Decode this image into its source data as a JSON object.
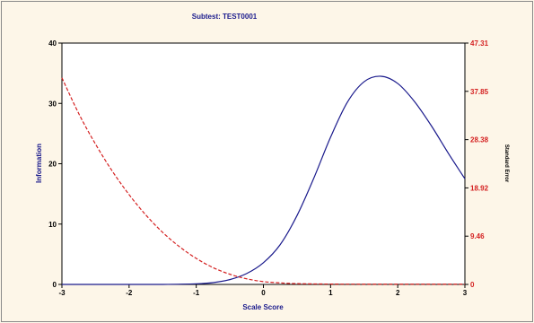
{
  "chart_data": {
    "type": "line",
    "title": "Subtest: TEST0001",
    "xlabel": "Scale Score",
    "ylabel_left": "Information",
    "ylabel_right": "Standard Error",
    "xlim": [
      -3,
      3
    ],
    "ylim_left": [
      0,
      40
    ],
    "ylim_right": [
      0,
      47.31
    ],
    "x_ticks": [
      "-3",
      "-2",
      "-1",
      "0",
      "1",
      "2",
      "3"
    ],
    "y_ticks_left": [
      "0",
      "10",
      "20",
      "30",
      "40"
    ],
    "y_ticks_right": [
      "0",
      "9.46",
      "18.92",
      "28.38",
      "37.85",
      "47.31"
    ],
    "grid": false,
    "series": [
      {
        "axis": "left",
        "color": "#1a1a8c",
        "style": "solid",
        "x": [
          -3,
          -2.5,
          -2,
          -1.5,
          -1,
          -0.75,
          -0.5,
          -0.25,
          0,
          0.25,
          0.5,
          0.75,
          1,
          1.25,
          1.5,
          1.75,
          2,
          2.25,
          2.5,
          2.75,
          3
        ],
        "values": [
          0,
          0,
          0,
          0,
          0.1,
          0.3,
          0.8,
          1.8,
          3.6,
          6.6,
          11.4,
          17.6,
          24.4,
          30.2,
          33.6,
          34.5,
          33.3,
          30.3,
          26.3,
          21.8,
          17.5
        ]
      },
      {
        "axis": "right",
        "color": "#d42020",
        "style": "dashed",
        "x": [
          -3,
          -2.75,
          -2.5,
          -2.25,
          -2,
          -1.75,
          -1.5,
          -1.25,
          -1,
          -0.75,
          -0.5,
          -0.25,
          0,
          0.25,
          0.5,
          1,
          1.5,
          2,
          2.5,
          3
        ],
        "values": [
          40.5,
          33.5,
          27.5,
          22.2,
          17.6,
          13.6,
          10.2,
          7.4,
          5.1,
          3.3,
          2.0,
          1.1,
          0.55,
          0.3,
          0.15,
          0.07,
          0.05,
          0.05,
          0.05,
          0.05
        ]
      }
    ]
  }
}
